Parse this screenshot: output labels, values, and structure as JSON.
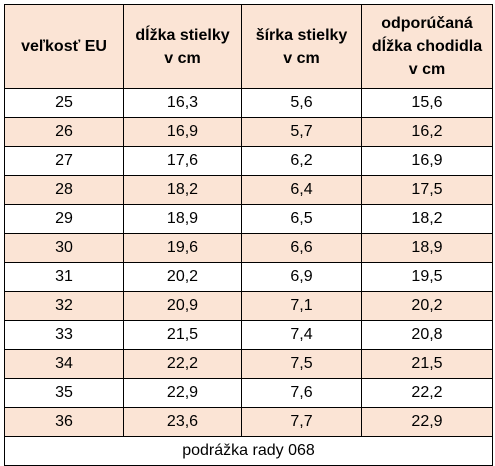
{
  "table": {
    "headers": [
      [
        "veľkosť EU"
      ],
      [
        "dĺžka stielky",
        "v cm"
      ],
      [
        "šírka stielky",
        "v cm"
      ],
      [
        "odporúčaná",
        "dĺžka chodidla",
        "v cm"
      ]
    ],
    "rows": [
      [
        "25",
        "16,3",
        "5,6",
        "15,6"
      ],
      [
        "26",
        "16,9",
        "5,7",
        "16,2"
      ],
      [
        "27",
        "17,6",
        "6,2",
        "16,9"
      ],
      [
        "28",
        "18,2",
        "6,4",
        "17,5"
      ],
      [
        "29",
        "18,9",
        "6,5",
        "18,2"
      ],
      [
        "30",
        "19,6",
        "6,6",
        "18,9"
      ],
      [
        "31",
        "20,2",
        "6,9",
        "19,5"
      ],
      [
        "32",
        "20,9",
        "7,1",
        "20,2"
      ],
      [
        "33",
        "21,5",
        "7,4",
        "20,8"
      ],
      [
        "34",
        "22,2",
        "7,5",
        "21,5"
      ],
      [
        "35",
        "22,9",
        "7,6",
        "22,2"
      ],
      [
        "36",
        "23,6",
        "7,7",
        "22,9"
      ]
    ],
    "footer": "podrážka rady 068"
  },
  "colors": {
    "header_fill": "#fbe4d5",
    "alt_row_fill": "#fbe4d5",
    "border": "#000000"
  }
}
